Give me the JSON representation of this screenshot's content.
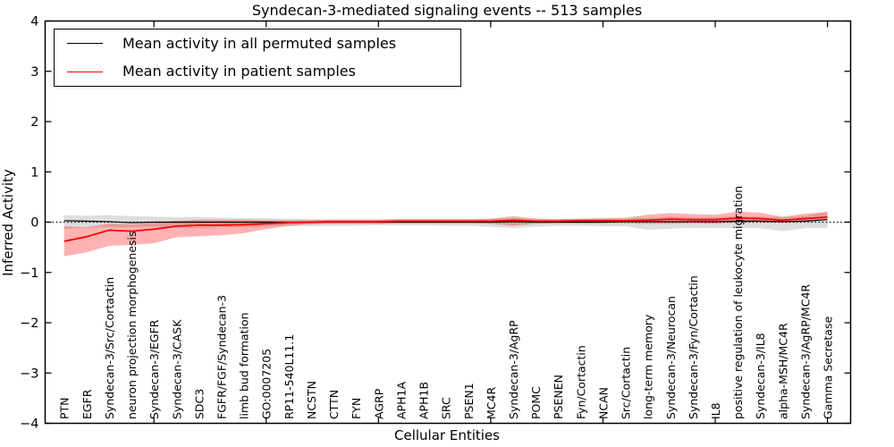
{
  "chart_data": {
    "type": "line",
    "title": "Syndecan-3-mediated signaling events -- 513 samples",
    "xlabel": "Cellular Entities",
    "ylabel": "Inferred Activity",
    "ylim": [
      -4,
      4
    ],
    "ytick_values": [
      4,
      3,
      2,
      1,
      0,
      -1,
      -2,
      -3,
      -4
    ],
    "ytick_labels": [
      "4",
      "3",
      "2",
      "1",
      "0",
      "−1",
      "−2",
      "−3",
      "−4"
    ],
    "xtick_entity_indices": [
      5,
      10,
      15,
      20,
      25,
      30,
      35
    ],
    "grid": false,
    "zero_reference_line": true,
    "legend_position": "upper left",
    "categories": [
      "PTN",
      "EGFR",
      "Syndecan-3/Src/Cortactin",
      "neuron projection morphogenesis",
      "Syndecan-3/EGFR",
      "Syndecan-3/CASK",
      "SDC3",
      "FGFR/FGF/Syndecan-3",
      "limb bud formation",
      "GO:0007205",
      "RP11-540L11.1",
      "NCSTN",
      "CTTN",
      "FYN",
      "AGRP",
      "APH1A",
      "APH1B",
      "SRC",
      "PSEN1",
      "MC4R",
      "Syndecan-3/AgRP",
      "POMC",
      "PSENEN",
      "Fyn/Cortactin",
      "NCAN",
      "Src/Cortactin",
      "long-term memory",
      "Syndecan-3/Neurocan",
      "Syndecan-3/Fyn/Cortactin",
      "IL8",
      "positive regulation of leukocyte migration",
      "Syndecan-3/IL8",
      "alpha-MSH/MC4R",
      "Syndecan-3/AgRP/MC4R",
      "Gamma Secretase"
    ],
    "series": [
      {
        "name": "Mean activity in all permuted samples",
        "color": "#000000",
        "line_width": 1.2,
        "band_color": "rgba(0,0,0,0.13)",
        "values": [
          0.03,
          0.02,
          0.01,
          -0.01,
          0.0,
          0.0,
          0.0,
          0.0,
          0.0,
          0.0,
          0.0,
          0.0,
          0.0,
          0.0,
          0.0,
          0.0,
          0.0,
          0.0,
          0.0,
          0.0,
          0.01,
          0.0,
          0.0,
          0.0,
          0.0,
          0.01,
          0.01,
          0.01,
          0.01,
          0.01,
          0.02,
          0.02,
          0.01,
          0.02,
          0.05
        ],
        "band_low": [
          -0.13,
          -0.11,
          -0.1,
          -0.1,
          -0.09,
          -0.11,
          -0.12,
          -0.1,
          -0.1,
          -0.09,
          -0.08,
          -0.08,
          -0.07,
          -0.07,
          -0.06,
          -0.06,
          -0.06,
          -0.07,
          -0.07,
          -0.09,
          -0.12,
          -0.09,
          -0.07,
          -0.07,
          -0.08,
          -0.08,
          -0.15,
          -0.13,
          -0.11,
          -0.12,
          -0.12,
          -0.12,
          -0.18,
          -0.12,
          -0.12
        ],
        "band_high": [
          0.14,
          0.13,
          0.14,
          0.12,
          0.11,
          0.1,
          0.1,
          0.09,
          0.08,
          0.08,
          0.07,
          0.06,
          0.06,
          0.06,
          0.06,
          0.06,
          0.06,
          0.06,
          0.06,
          0.07,
          0.08,
          0.07,
          0.06,
          0.07,
          0.07,
          0.07,
          0.09,
          0.11,
          0.1,
          0.1,
          0.12,
          0.11,
          0.1,
          0.12,
          0.22
        ]
      },
      {
        "name": "Mean activity in patient samples",
        "color": "#ff0000",
        "line_width": 1.8,
        "band_color": "rgba(255,0,0,0.30)",
        "values": [
          -0.38,
          -0.29,
          -0.16,
          -0.18,
          -0.14,
          -0.08,
          -0.06,
          -0.06,
          -0.05,
          -0.03,
          -0.01,
          0.0,
          0.01,
          0.01,
          0.01,
          0.02,
          0.02,
          0.02,
          0.02,
          0.02,
          0.04,
          0.02,
          0.02,
          0.03,
          0.03,
          0.03,
          0.04,
          0.06,
          0.05,
          0.05,
          0.08,
          0.07,
          0.04,
          0.07,
          0.1
        ],
        "band_low": [
          -0.68,
          -0.6,
          -0.47,
          -0.45,
          -0.42,
          -0.3,
          -0.28,
          -0.26,
          -0.22,
          -0.14,
          -0.07,
          -0.04,
          -0.03,
          -0.03,
          -0.03,
          -0.02,
          -0.02,
          -0.02,
          -0.02,
          -0.03,
          -0.07,
          -0.03,
          -0.02,
          -0.02,
          -0.02,
          -0.02,
          -0.03,
          -0.03,
          -0.02,
          -0.03,
          0.0,
          0.0,
          -0.01,
          0.01,
          0.04
        ],
        "band_high": [
          -0.08,
          -0.1,
          -0.03,
          -0.04,
          -0.02,
          0.03,
          0.05,
          0.05,
          0.05,
          0.04,
          0.04,
          0.04,
          0.05,
          0.05,
          0.05,
          0.06,
          0.06,
          0.06,
          0.06,
          0.07,
          0.12,
          0.07,
          0.06,
          0.07,
          0.08,
          0.09,
          0.15,
          0.18,
          0.16,
          0.15,
          0.21,
          0.19,
          0.11,
          0.17,
          0.2
        ]
      }
    ]
  }
}
